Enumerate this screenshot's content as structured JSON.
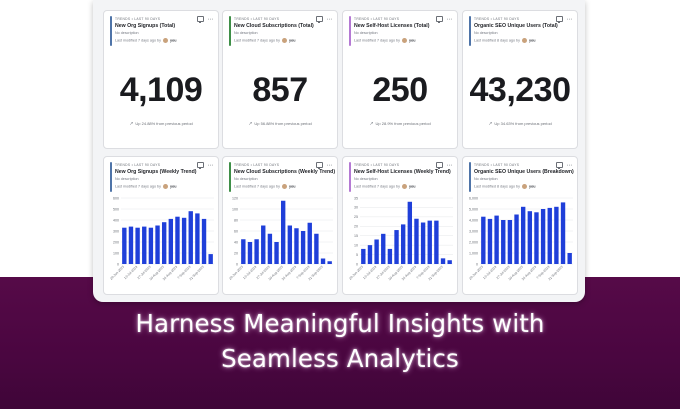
{
  "headline": {
    "line1": "Harness Meaningful Insights with",
    "line2": "Seamless Analytics"
  },
  "icons": {
    "comment": "chat-bubble-icon",
    "more": "ellipsis-icon",
    "trend": "trend-up-icon"
  },
  "colors": {
    "banner": "#4f0845",
    "bar": "#1f3fd9",
    "accent_blue": "#4f74a8",
    "accent_green": "#3f8f48",
    "accent_purple": "#b57ad4"
  },
  "number_cards": [
    {
      "tag": "TRENDS • LAST 90 DAYS",
      "title": "New Org Signups (Total)",
      "description": "No description",
      "modified": "Last modified 7 days ago by",
      "owner": "you",
      "accent": "#4f74a8",
      "value": "4,109",
      "change": "Up 24.88% from previous period"
    },
    {
      "tag": "TRENDS • LAST 90 DAYS",
      "title": "New Cloud Subscriptions (Total)",
      "description": "No description",
      "modified": "Last modified 7 days ago by",
      "owner": "you",
      "accent": "#3f8f48",
      "value": "857",
      "change": "Up 56.88% from previous period"
    },
    {
      "tag": "TRENDS • LAST 90 DAYS",
      "title": "New Self-Host Licenses (Total)",
      "description": "No description",
      "modified": "Last modified 7 days ago by",
      "owner": "you",
      "accent": "#b57ad4",
      "value": "250",
      "change": "Up 28.9% from previous period"
    },
    {
      "tag": "TRENDS • LAST 90 DAYS",
      "title": "Organic SEO Unique Users (Total)",
      "description": "No description",
      "modified": "Last modified 8 days ago by",
      "owner": "you",
      "accent": "#4f74a8",
      "value": "43,230",
      "change": "Up 34.63% from previous period"
    }
  ],
  "chart_cards": [
    {
      "tag": "TRENDS • LAST 90 DAYS",
      "title": "New Org Signups (Weekly Trend)",
      "description": "No description",
      "modified": "Last modified 7 days ago by",
      "owner": "you",
      "accent": "#4f74a8"
    },
    {
      "tag": "TRENDS • LAST 90 DAYS",
      "title": "New Cloud Subscriptions (Weekly Trend)",
      "description": "No description",
      "modified": "Last modified 7 days ago by",
      "owner": "you",
      "accent": "#3f8f48"
    },
    {
      "tag": "TRENDS • LAST 90 DAYS",
      "title": "New Self-Host Licenses (Weekly Trend)",
      "description": "No description",
      "modified": "Last modified 7 days ago by",
      "owner": "you",
      "accent": "#b57ad4"
    },
    {
      "tag": "TRENDS • LAST 90 DAYS",
      "title": "Organic SEO Unique Users (Breakdown)",
      "description": "No description",
      "modified": "Last modified 8 days ago by",
      "owner": "you",
      "accent": "#4f74a8"
    }
  ],
  "chart_data": [
    {
      "type": "bar",
      "categories": [
        "29 Jun 2023",
        "6 Jul 2023",
        "13 Jul 2023",
        "20 Jul 2023",
        "27 Jul 2023",
        "3 Aug 2023",
        "10 Aug 2023",
        "17 Aug 2023",
        "24 Aug 2023",
        "31 Aug 2023",
        "7 Sep 2023",
        "14 Sep 2023",
        "21 Sep 2023",
        "28 Sep 2023"
      ],
      "tick_labels": [
        "29-Jun-2023",
        "13-Jul-2023",
        "27-Jul-2023",
        "10-Aug-2023",
        "24-Aug-2023",
        "7-Sep-2023",
        "21-Sep-2023"
      ],
      "values": [
        330,
        340,
        330,
        340,
        330,
        350,
        380,
        410,
        430,
        420,
        480,
        460,
        410,
        90
      ],
      "ylim": [
        0,
        600
      ],
      "yticks": [
        "0",
        "100",
        "200",
        "300",
        "400",
        "500",
        "600"
      ],
      "grid": true
    },
    {
      "type": "bar",
      "categories": [
        "29 Jun 2023",
        "6 Jul 2023",
        "13 Jul 2023",
        "20 Jul 2023",
        "27 Jul 2023",
        "3 Aug 2023",
        "10 Aug 2023",
        "17 Aug 2023",
        "24 Aug 2023",
        "31 Aug 2023",
        "7 Sep 2023",
        "14 Sep 2023",
        "21 Sep 2023",
        "28 Sep 2023"
      ],
      "tick_labels": [
        "29-Jun-2023",
        "13-Jul-2023",
        "27-Jul-2023",
        "10-Aug-2023",
        "24-Aug-2023",
        "7-Sep-2023",
        "21-Sep-2023"
      ],
      "values": [
        45,
        40,
        45,
        70,
        55,
        40,
        115,
        70,
        65,
        60,
        75,
        55,
        10,
        5
      ],
      "ylim": [
        0,
        120
      ],
      "yticks": [
        "0",
        "20",
        "40",
        "60",
        "80",
        "100",
        "120"
      ],
      "grid": true
    },
    {
      "type": "bar",
      "categories": [
        "29 Jun 2023",
        "6 Jul 2023",
        "13 Jul 2023",
        "20 Jul 2023",
        "27 Jul 2023",
        "3 Aug 2023",
        "10 Aug 2023",
        "17 Aug 2023",
        "24 Aug 2023",
        "31 Aug 2023",
        "7 Sep 2023",
        "14 Sep 2023",
        "21 Sep 2023",
        "28 Sep 2023"
      ],
      "tick_labels": [
        "29-Jun-2023",
        "13-Jul-2023",
        "27-Jul-2023",
        "10-Aug-2023",
        "24-Aug-2023",
        "7-Sep-2023",
        "21-Sep-2023"
      ],
      "values": [
        8,
        10,
        13,
        16,
        8,
        18,
        21,
        33,
        24,
        22,
        23,
        23,
        3,
        2
      ],
      "ylim": [
        0,
        35
      ],
      "yticks": [
        "0",
        "5",
        "10",
        "15",
        "20",
        "25",
        "30",
        "35"
      ],
      "grid": true
    },
    {
      "type": "bar",
      "categories": [
        "29 Jun 2023",
        "6 Jul 2023",
        "13 Jul 2023",
        "20 Jul 2023",
        "27 Jul 2023",
        "3 Aug 2023",
        "10 Aug 2023",
        "17 Aug 2023",
        "24 Aug 2023",
        "31 Aug 2023",
        "7 Sep 2023",
        "14 Sep 2023",
        "21 Sep 2023",
        "28 Sep 2023"
      ],
      "tick_labels": [
        "29-Jun-2023",
        "13-Jul-2023",
        "27-Jul-2023",
        "10-Aug-2023",
        "24-Aug-2023",
        "7-Sep-2023",
        "21-Sep-2023"
      ],
      "values": [
        4300,
        4100,
        4400,
        4000,
        4000,
        4500,
        5200,
        4800,
        4700,
        5000,
        5100,
        5200,
        5600,
        1000
      ],
      "ylim": [
        0,
        6000
      ],
      "yticks": [
        "0",
        "1,000",
        "2,000",
        "3,000",
        "4,000",
        "5,000",
        "6,000"
      ],
      "grid": true
    }
  ]
}
